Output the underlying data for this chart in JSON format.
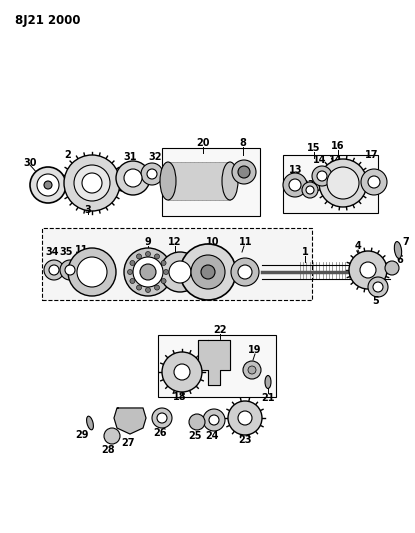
{
  "title": "8J21 2000",
  "bg_color": "#ffffff",
  "fg_color": "#000000",
  "fig_width": 4.15,
  "fig_height": 5.33,
  "dpi": 100
}
